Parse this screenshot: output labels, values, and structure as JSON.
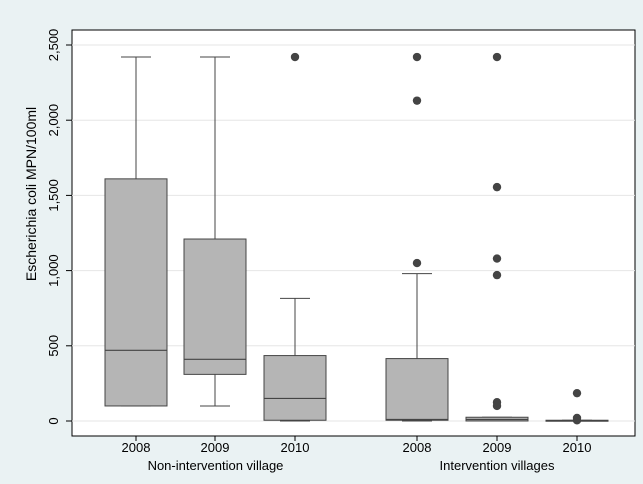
{
  "chart_data": {
    "type": "box",
    "ylabel": "Escherichia coli MPN/100ml",
    "ylim": [
      -80,
      2570
    ],
    "yticks": [
      0,
      500,
      1000,
      1500,
      2000,
      2500
    ],
    "ytick_labels": [
      "0",
      "500",
      "1,000",
      "1,500",
      "2,000",
      "2,500"
    ],
    "box_color": "#b5b5b5",
    "outlier_color": "#444444",
    "groups": [
      {
        "label": "Non-intervention village",
        "boxes": [
          {
            "category": "2008",
            "whisker_low": 100,
            "q1": 100,
            "median": 470,
            "q3": 1610,
            "whisker_high": 2420,
            "outliers": []
          },
          {
            "category": "2009",
            "whisker_low": 100,
            "q1": 310,
            "median": 410,
            "q3": 1210,
            "whisker_high": 2420,
            "outliers": []
          },
          {
            "category": "2010",
            "whisker_low": 0,
            "q1": 5,
            "median": 150,
            "q3": 435,
            "whisker_high": 815,
            "outliers": [
              2420
            ]
          }
        ]
      },
      {
        "label": "Intervention villages",
        "boxes": [
          {
            "category": "2008",
            "whisker_low": 0,
            "q1": 5,
            "median": 10,
            "q3": 415,
            "whisker_high": 980,
            "outliers": [
              1050,
              2130,
              2420
            ]
          },
          {
            "category": "2009",
            "whisker_low": 0,
            "q1": 0,
            "median": 10,
            "q3": 25,
            "whisker_high": 25,
            "outliers": [
              100,
              125,
              970,
              1080,
              1555,
              2420
            ]
          },
          {
            "category": "2010",
            "whisker_low": 0,
            "q1": 0,
            "median": 2,
            "q3": 5,
            "whisker_high": 5,
            "outliers": [
              5,
              20,
              185
            ]
          }
        ]
      }
    ]
  }
}
